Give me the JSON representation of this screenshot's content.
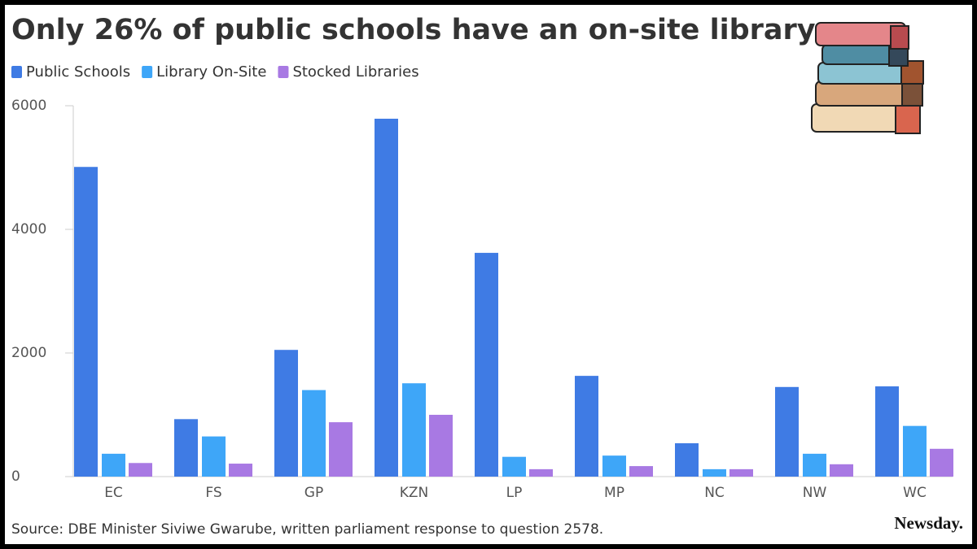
{
  "chart_data": {
    "type": "bar",
    "title": "Only 26% of public schools have an on-site library",
    "categories": [
      "EC",
      "FS",
      "GP",
      "KZN",
      "LP",
      "MP",
      "NC",
      "NW",
      "WC"
    ],
    "series": [
      {
        "name": "Public Schools",
        "color": "#3f7be4",
        "values": [
          5010,
          930,
          2050,
          5790,
          3620,
          1630,
          540,
          1450,
          1460
        ]
      },
      {
        "name": "Library On-Site",
        "color": "#3ea6f8",
        "values": [
          370,
          650,
          1400,
          1510,
          320,
          340,
          120,
          370,
          820
        ]
      },
      {
        "name": "Stocked Libraries",
        "color": "#a879e3",
        "values": [
          220,
          210,
          880,
          1000,
          120,
          170,
          120,
          200,
          450
        ]
      }
    ],
    "ylim": [
      0,
      6000
    ],
    "yticks": [
      0,
      2000,
      4000,
      6000
    ],
    "grid": false,
    "source": "Source: DBE Minister Siviwe Gwarube, written parliament response to question 2578.",
    "brand": "Newsday."
  }
}
